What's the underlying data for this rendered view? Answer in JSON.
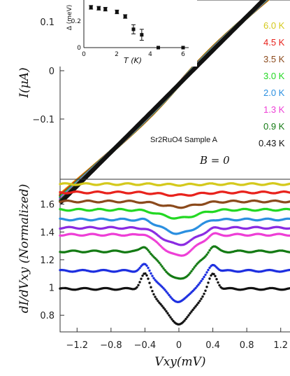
{
  "chart_data": [
    {
      "type": "line",
      "panel": "top",
      "ylabel": "I(μA)",
      "annotation": "Sr2RuO4  Sample A",
      "field_label": "B = 0",
      "yticks": [
        "0.1",
        "0",
        "−0.1"
      ],
      "ylim": [
        -0.18,
        0.16
      ],
      "xlim": [
        -1.4,
        1.4
      ],
      "series": [
        {
          "name": "6.0 K",
          "color": "#d4c91c",
          "x": [
            -1.4,
            -0.7,
            0,
            0.7,
            1.4
          ],
          "y": [
            -0.19,
            -0.095,
            0,
            0.095,
            0.19
          ]
        },
        {
          "name": "4.5 K",
          "color": "#e8221c",
          "x": [
            -1.4,
            -0.7,
            0,
            0.7,
            1.4
          ],
          "y": [
            -0.195,
            -0.098,
            0,
            0.098,
            0.195
          ]
        },
        {
          "name": "3.5 K",
          "color": "#8b4a1c",
          "x": [
            -1.4,
            -0.7,
            0,
            0.7,
            1.4
          ],
          "y": [
            -0.2,
            -0.1,
            0,
            0.1,
            0.2
          ]
        },
        {
          "name": "3.0 K",
          "color": "#22d822",
          "x": [
            -1.4,
            -0.7,
            0,
            0.7,
            1.4
          ],
          "y": [
            -0.205,
            -0.103,
            0,
            0.103,
            0.205
          ]
        },
        {
          "name": "2.0 K",
          "color": "#2a8fe0",
          "x": [
            -1.4,
            -0.7,
            0,
            0.7,
            1.4
          ],
          "y": [
            -0.21,
            -0.106,
            0,
            0.106,
            0.21
          ]
        },
        {
          "name": "1.3 K",
          "color": "#ee3fd6",
          "x": [
            -1.4,
            -0.7,
            0,
            0.7,
            1.4
          ],
          "y": [
            -0.215,
            -0.11,
            0,
            0.11,
            0.215
          ]
        },
        {
          "name": "0.9 K",
          "color": "#137a13",
          "x": [
            -1.4,
            -0.7,
            0,
            0.7,
            1.4
          ],
          "y": [
            -0.22,
            -0.113,
            0,
            0.113,
            0.22
          ]
        },
        {
          "name": "0.43 K",
          "color": "#111111",
          "x": [
            -1.4,
            -0.7,
            0,
            0.7,
            1.4
          ],
          "y": [
            -0.225,
            -0.118,
            0,
            0.118,
            0.225
          ]
        }
      ]
    },
    {
      "type": "scatter",
      "panel": "inset",
      "xlabel": "T (K)",
      "ylabel": "Δ (meV)",
      "xticks": [
        "0",
        "2",
        "4",
        "6"
      ],
      "yticks": [
        "0.2",
        "0"
      ],
      "xlim": [
        0,
        6.3
      ],
      "ylim": [
        0,
        0.52
      ],
      "points": [
        {
          "x": 0.43,
          "y": 0.44,
          "err": 0.02
        },
        {
          "x": 0.9,
          "y": 0.43,
          "err": 0.02
        },
        {
          "x": 1.3,
          "y": 0.42,
          "err": 0.02
        },
        {
          "x": 2.0,
          "y": 0.39,
          "err": 0.02
        },
        {
          "x": 2.5,
          "y": 0.34,
          "err": 0.02
        },
        {
          "x": 3.0,
          "y": 0.2,
          "err": 0.05
        },
        {
          "x": 3.5,
          "y": 0.14,
          "err": 0.06
        },
        {
          "x": 4.5,
          "y": 0.0,
          "err": 0
        },
        {
          "x": 6.0,
          "y": 0.0,
          "err": 0
        }
      ]
    },
    {
      "type": "scatter",
      "panel": "bottom",
      "xlabel": "Vxy(mV)",
      "ylabel": "dI/dVxy (Normalized)",
      "xticks": [
        "−1.2",
        "−0.8",
        "−0.4",
        "0",
        "0.4",
        "0.8",
        "1.2"
      ],
      "yticks": [
        "1.6",
        "1.4",
        "1.2",
        "1",
        "0.8"
      ],
      "xlim": [
        -1.4,
        1.4
      ],
      "ylim": [
        0.68,
        1.78
      ],
      "series": [
        {
          "name": "6.0 K",
          "color": "#d4c91c",
          "offset": 1.745,
          "dip": 0.005,
          "peak": 0.0,
          "width": 0.3
        },
        {
          "name": "4.5 K",
          "color": "#e8221c",
          "offset": 1.685,
          "dip": 0.02,
          "peak": 0.0,
          "width": 0.35
        },
        {
          "name": "3.5 K",
          "color": "#8b4a1c",
          "offset": 1.62,
          "dip": 0.04,
          "peak": 0.0,
          "width": 0.35
        },
        {
          "name": "3.0 K",
          "color": "#22d822",
          "offset": 1.56,
          "dip": 0.06,
          "peak": 0.0,
          "width": 0.35
        },
        {
          "name": "2.0 K",
          "color": "#2a8fe0",
          "offset": 1.49,
          "dip": 0.1,
          "peak": 0.01,
          "width": 0.33
        },
        {
          "name": "1.3 K",
          "color": "#ee3fd6",
          "offset": 1.38,
          "dip": 0.15,
          "peak": 0.02,
          "width": 0.32
        },
        {
          "name": "0.9 K",
          "color": "#137a13",
          "offset": 1.26,
          "dip": 0.2,
          "peak": 0.05,
          "width": 0.3
        },
        {
          "name": "0.43 K",
          "color": "#111111",
          "offset": 0.99,
          "dip": 0.25,
          "peak": 0.12,
          "width": 0.28
        }
      ],
      "extra_purple": {
        "color": "#8a2be2",
        "offset": 1.43,
        "dip": 0.12,
        "peak": 0.01,
        "width": 0.33
      },
      "extra_blue": {
        "color": "#1c2ee0",
        "offset": 1.12,
        "dip": 0.22,
        "peak": 0.06,
        "width": 0.3
      }
    }
  ]
}
